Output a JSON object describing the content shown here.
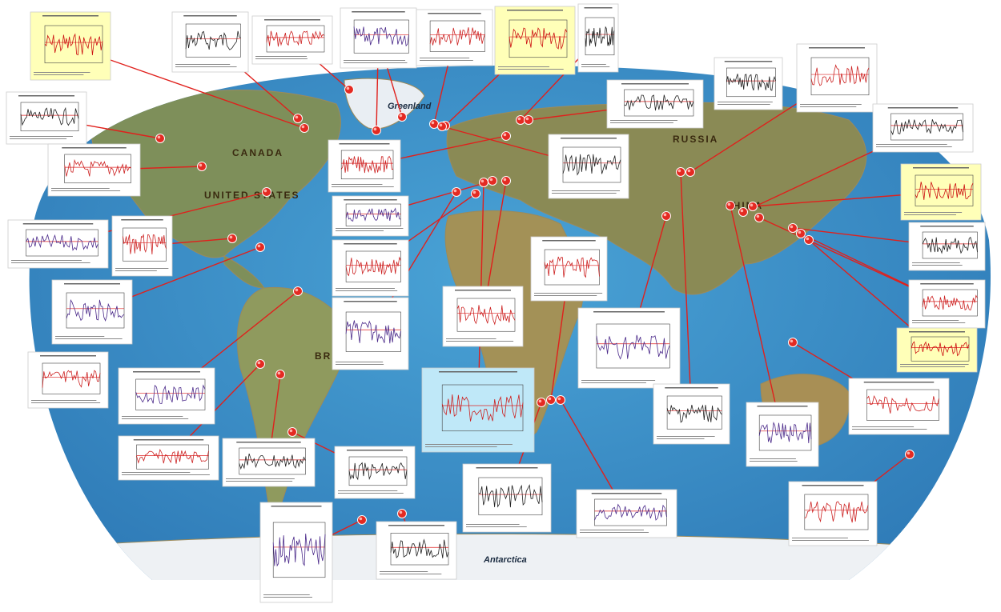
{
  "map": {
    "labels": [
      "CANADA",
      "UNITED STATES",
      "RUSSIA",
      "CHINA",
      "BRA",
      "Greenland",
      "Antarctica"
    ]
  }
}
